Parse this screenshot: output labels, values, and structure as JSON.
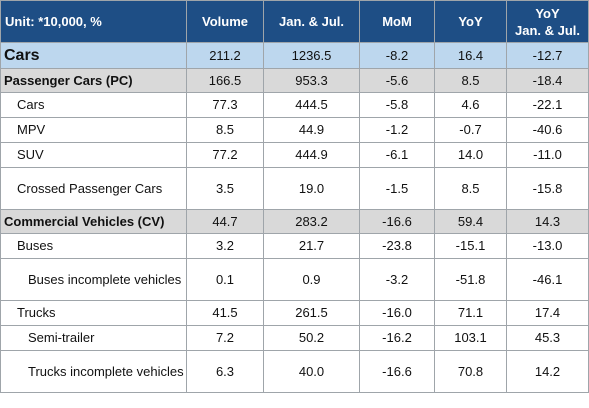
{
  "header": {
    "unit": "Unit: *10,000, %",
    "volume": "Volume",
    "jan_jul": "Jan. & Jul.",
    "mom": "MoM",
    "yoy": "YoY",
    "yoy_jan_jul_line1": "YoY",
    "yoy_jan_jul_line2": "Jan. & Jul."
  },
  "rows": [
    {
      "label": "Cars",
      "volume": "211.2",
      "jan_jul": "1236.5",
      "mom": "-8.2",
      "yoy": "16.4",
      "yoy_jan_jul": "-12.7"
    },
    {
      "label": "Passenger Cars (PC)",
      "volume": "166.5",
      "jan_jul": "953.3",
      "mom": "-5.6",
      "yoy": "8.5",
      "yoy_jan_jul": "-18.4"
    },
    {
      "label": "Cars",
      "volume": "77.3",
      "jan_jul": "444.5",
      "mom": "-5.8",
      "yoy": "4.6",
      "yoy_jan_jul": "-22.1"
    },
    {
      "label": "MPV",
      "volume": "8.5",
      "jan_jul": "44.9",
      "mom": "-1.2",
      "yoy": "-0.7",
      "yoy_jan_jul": "-40.6"
    },
    {
      "label": "SUV",
      "volume": "77.2",
      "jan_jul": "444.9",
      "mom": "-6.1",
      "yoy": "14.0",
      "yoy_jan_jul": "-11.0"
    },
    {
      "label": "Crossed Passenger Cars",
      "volume": "3.5",
      "jan_jul": "19.0",
      "mom": "-1.5",
      "yoy": "8.5",
      "yoy_jan_jul": "-15.8"
    },
    {
      "label": "Commercial Vehicles (CV)",
      "volume": "44.7",
      "jan_jul": "283.2",
      "mom": "-16.6",
      "yoy": "59.4",
      "yoy_jan_jul": "14.3"
    },
    {
      "label": "Buses",
      "volume": "3.2",
      "jan_jul": "21.7",
      "mom": "-23.8",
      "yoy": "-15.1",
      "yoy_jan_jul": "-13.0"
    },
    {
      "label": "Buses incomplete vehicles",
      "volume": "0.1",
      "jan_jul": "0.9",
      "mom": "-3.2",
      "yoy": "-51.8",
      "yoy_jan_jul": "-46.1"
    },
    {
      "label": "Trucks",
      "volume": "41.5",
      "jan_jul": "261.5",
      "mom": "-16.0",
      "yoy": "71.1",
      "yoy_jan_jul": "17.4"
    },
    {
      "label": "Semi-trailer",
      "volume": "7.2",
      "jan_jul": "50.2",
      "mom": "-16.2",
      "yoy": "103.1",
      "yoy_jan_jul": "45.3"
    },
    {
      "label": "Trucks incomplete vehicles",
      "volume": "6.3",
      "jan_jul": "40.0",
      "mom": "-16.6",
      "yoy": "70.8",
      "yoy_jan_jul": "14.2"
    }
  ],
  "colors": {
    "header_bg": "#1e4e85",
    "total_row_bg": "#bdd7ee",
    "category_row_bg": "#d9d9d9"
  }
}
